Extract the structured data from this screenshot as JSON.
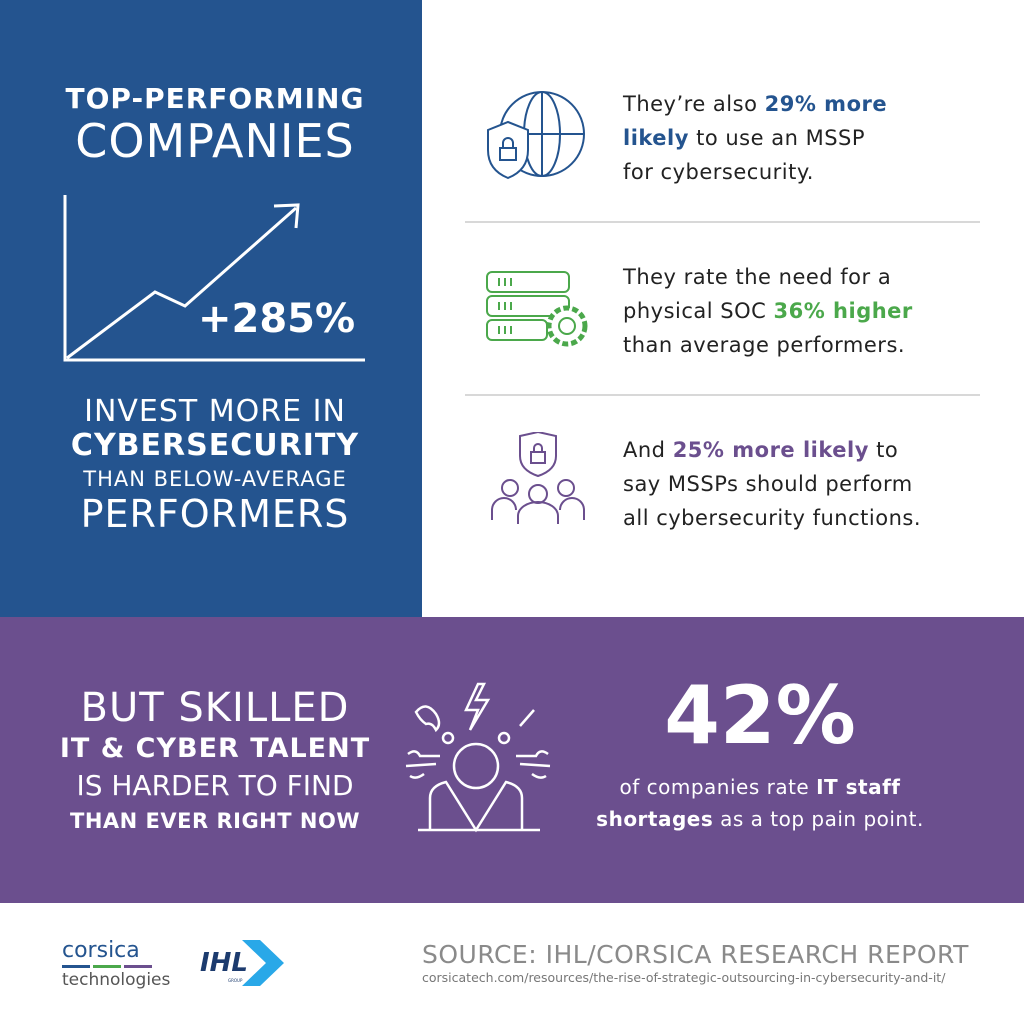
{
  "left_panel": {
    "title_line1": "TOP-PERFORMING",
    "title_line2": "COMPANIES",
    "growth_value": "+285%",
    "line1": "INVEST MORE IN",
    "line2": "CYBERSECURITY",
    "line3": "THAN BELOW-AVERAGE",
    "line4": "PERFORMERS"
  },
  "stats": [
    {
      "icon": "globe-shield-lock-icon",
      "pre": "They’re also ",
      "highlight": "29% more likely",
      "post": " to use an MSSP for cybersecurity.",
      "color": "#24548f",
      "lines": [
        "They’re also ",
        "29% more",
        "likely",
        " to use an MSSP",
        "for cybersecurity."
      ]
    },
    {
      "icon": "server-gear-icon",
      "color": "#4ba84b",
      "lines": [
        "They rate the need for a",
        "physical SOC ",
        "36% higher",
        "than average performers."
      ]
    },
    {
      "icon": "shield-lock-people-icon",
      "color": "#6b4f8e",
      "lines": [
        "And ",
        "25% more likely",
        " to",
        "say MSSPs should perform",
        "all cybersecurity functions."
      ]
    }
  ],
  "band": {
    "line1": "BUT SKILLED",
    "line2": "IT & CYBER TALENT",
    "line3": "IS HARDER TO FIND",
    "line4": "THAN EVER RIGHT NOW",
    "icon": "stressed-person-icon",
    "big_stat": "42%",
    "desc_pre": "of companies rate ",
    "desc_bold1": "IT staff",
    "desc_bold2": "shortages",
    "desc_post": " as a top pain point."
  },
  "footer": {
    "logo1_top": "corsica",
    "logo1_bottom": "technologies",
    "logo2": "IHL",
    "logo2_sub": "GROUP",
    "source": "SOURCE: IHL/CORSICA RESEARCH REPORT",
    "url": "corsicatech.com/resources/the-rise-of-strategic-outsourcing-in-cybersecurity-and-it/"
  },
  "colors": {
    "blue": "#24548f",
    "purple": "#6b4f8e",
    "green": "#4ba84b"
  }
}
